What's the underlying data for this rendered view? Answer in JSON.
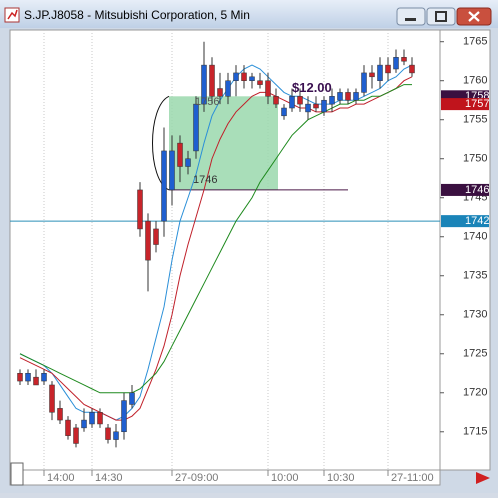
{
  "chart_data": {
    "type": "candlestick",
    "title": "S.JP.J8058 - Mitsubishi Corporation, 5 Min",
    "categories": [
      null,
      null,
      null,
      "14:00",
      null,
      null,
      null,
      null,
      null,
      "14:30",
      null,
      null,
      null,
      null,
      null,
      null,
      null,
      null,
      null,
      "27-09:00",
      null,
      null,
      null,
      null,
      null,
      null,
      null,
      null,
      null,
      null,
      null,
      "10:00",
      null,
      null,
      null,
      null,
      null,
      null,
      "10:30",
      null,
      null,
      null,
      null,
      null,
      null,
      null,
      "27-11:00",
      null,
      null,
      null
    ],
    "open": [
      1722.5,
      1721.5,
      1722,
      1721.5,
      1721,
      1718,
      1716.5,
      1715.5,
      1715.5,
      1716,
      1717.5,
      1715.5,
      1714,
      1715,
      1718.5,
      1746,
      1742,
      1741,
      1742,
      1746,
      1752,
      1749,
      1751,
      1757,
      1762,
      1759,
      1758,
      1760,
      1761,
      1760,
      1760,
      1760,
      1758,
      1755.5,
      1756.5,
      1758,
      1756,
      1757,
      1756,
      1757,
      1757.5,
      1758.5,
      1757.5,
      1758.5,
      1761,
      1760,
      1762,
      1761.5,
      1763,
      1762
    ],
    "high": [
      1723,
      1723,
      1723,
      1723,
      1721.5,
      1719,
      1717,
      1716,
      1718,
      1718,
      1718,
      1716,
      1716,
      1720,
      1721,
      1747,
      1743,
      1742,
      1754,
      1753,
      1753,
      1751,
      1758,
      1765,
      1763,
      1761,
      1761,
      1762,
      1762,
      1761,
      1761,
      1761,
      1759,
      1757,
      1759,
      1759,
      1758,
      1758,
      1758,
      1759,
      1759,
      1759,
      1759,
      1762,
      1762,
      1763,
      1763,
      1764,
      1764,
      1763
    ],
    "low": [
      1721,
      1721,
      1721,
      1721,
      1716.5,
      1716,
      1714,
      1713,
      1715,
      1715.5,
      1715.5,
      1713.5,
      1713,
      1714,
      1718,
      1740,
      1733,
      1738,
      1740,
      1744,
      1747,
      1748,
      1750,
      1756,
      1757,
      1757,
      1757,
      1758,
      1759,
      1759,
      1759,
      1757,
      1756.5,
      1755,
      1756,
      1756,
      1755,
      1756,
      1755.5,
      1756,
      1757,
      1757,
      1757,
      1758,
      1759,
      1759,
      1760,
      1761,
      1762,
      1760.5
    ],
    "close": [
      1721.5,
      1722.5,
      1721,
      1722.5,
      1717.5,
      1716.5,
      1714.5,
      1713.5,
      1716.5,
      1717.5,
      1716,
      1714,
      1715,
      1719,
      1720,
      1741,
      1737,
      1739,
      1751,
      1751,
      1749,
      1750,
      1757,
      1762,
      1758,
      1758,
      1760,
      1761,
      1760,
      1760.5,
      1759.5,
      1758,
      1757,
      1756.5,
      1758,
      1757,
      1757,
      1756.5,
      1757.5,
      1758,
      1758.5,
      1757.5,
      1758.5,
      1761,
      1760.5,
      1762,
      1761,
      1763,
      1762.5,
      1761
    ],
    "up_color": "#1f5fd0",
    "down_color": "#c8242a",
    "lines": [
      {
        "color": "#2a8fd8",
        "values": [
          1725,
          1724.5,
          1724,
          1723.5,
          1722.5,
          1721,
          1719.5,
          1718,
          1717.5,
          1717.5,
          1717.5,
          1717,
          1716.5,
          1717,
          1718,
          1719.5,
          1723,
          1727,
          1731,
          1737,
          1742,
          1745,
          1748,
          1752,
          1755.5,
          1757.5,
          1759,
          1760.5,
          1761.5,
          1762,
          1761.5,
          1760.5,
          1759.5,
          1758.5,
          1758,
          1758,
          1757.5,
          1757,
          1757,
          1757,
          1757.5,
          1757.5,
          1757.5,
          1758,
          1758.5,
          1759,
          1760,
          1760.5,
          1761.5,
          1762
        ]
      },
      {
        "color": "#c0202a",
        "values": [
          1724.5,
          1724,
          1723.5,
          1723,
          1722.5,
          1721.5,
          1720.5,
          1719.5,
          1718.5,
          1718,
          1717.5,
          1717,
          1716.5,
          1716.5,
          1717,
          1718,
          1720.5,
          1723,
          1726,
          1730,
          1735,
          1739,
          1742.5,
          1746,
          1750,
          1752.5,
          1754.5,
          1756,
          1757,
          1758,
          1758.5,
          1758.5,
          1758,
          1757.5,
          1757,
          1756.5,
          1756.5,
          1756,
          1756,
          1756,
          1756.5,
          1756.5,
          1757,
          1757,
          1757.5,
          1758,
          1758.5,
          1759,
          1760,
          1760.5
        ]
      },
      {
        "color": "#1e8a1e",
        "values": [
          1725,
          1724.5,
          1724,
          1723.5,
          1723,
          1722.5,
          1722,
          1721.5,
          1721,
          1720.5,
          1720,
          1720,
          1720,
          1720,
          1720,
          1720.5,
          1721.5,
          1722.5,
          1724,
          1726,
          1728,
          1730,
          1732,
          1734,
          1736,
          1738,
          1740,
          1742,
          1743.5,
          1745,
          1747,
          1748.5,
          1750,
          1751.5,
          1753,
          1754,
          1755,
          1755.5,
          1756,
          1756.5,
          1757,
          1757,
          1757.5,
          1757.5,
          1758,
          1758,
          1758.5,
          1759,
          1759.5,
          1759.5
        ]
      }
    ],
    "zone": {
      "from": 1746,
      "to": 1758,
      "color": "#9ad8ad"
    },
    "hlines": [
      {
        "value": 1742,
        "color": "#2a8fb8"
      },
      {
        "value": 1746,
        "color": "#4a1848"
      }
    ],
    "price_markers": [
      {
        "value": 1758,
        "color": "#3a1040"
      },
      {
        "value": 1757,
        "color": "#c0141c"
      },
      {
        "value": 1746,
        "color": "#3a1040"
      },
      {
        "value": 1742,
        "color": "#1a84b8"
      }
    ],
    "annotations": [
      "1756",
      "1746",
      "$12.00"
    ],
    "ylim": [
      1710.1,
      1766.5
    ],
    "yticks": [
      1715,
      1720,
      1725,
      1730,
      1735,
      1740,
      1745,
      1750,
      1755,
      1760,
      1765
    ]
  }
}
